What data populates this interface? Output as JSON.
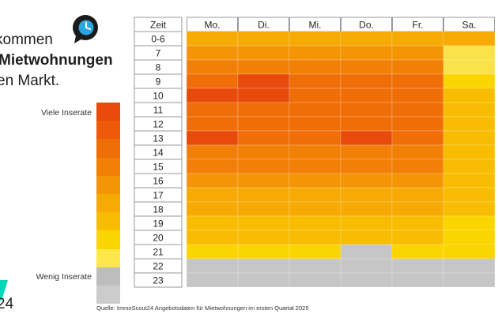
{
  "headline": {
    "line1": "kommen",
    "line2": "Mietwohnungen",
    "line3": "en Markt."
  },
  "icon": "clock-speech-bubble-icon",
  "legend": {
    "high_label": "Viele Inserate",
    "low_label": "Wenig Inserate",
    "colors": [
      "#e84a0c",
      "#ee5a0a",
      "#f06e08",
      "#f27f06",
      "#f49505",
      "#f6aa03",
      "#f8bd02",
      "#fbd500",
      "#fde74a",
      "#bdbdbd",
      "#cccccc"
    ]
  },
  "brand": {
    "logo_text": "24",
    "accent": "#00d9b8"
  },
  "source": "Quelle: ImmoScout24 Angebotsdaten für Mietwohnungen im ersten Quartal 2025",
  "chart_data": {
    "type": "heatmap",
    "corner_label": "Zeit",
    "x_categories": [
      "Mo.",
      "Di.",
      "Mi.",
      "Do.",
      "Fr.",
      "Sa."
    ],
    "y_categories": [
      "0-6",
      "7",
      "8",
      "9",
      "10",
      "11",
      "12",
      "13",
      "14",
      "15",
      "16",
      "17",
      "18",
      "19",
      "20",
      "21",
      "22",
      "23"
    ],
    "scale": "0 = Wenig Inserate (grey) … 10 = Viele Inserate (red-orange)",
    "values": [
      [
        5,
        5,
        5,
        5,
        5,
        5
      ],
      [
        6,
        6,
        6,
        6,
        6,
        2
      ],
      [
        7,
        7,
        7,
        7,
        7,
        2
      ],
      [
        8,
        9,
        8,
        8,
        8,
        3
      ],
      [
        9,
        9,
        8,
        8,
        8,
        4
      ],
      [
        8,
        8,
        8,
        8,
        8,
        4
      ],
      [
        8,
        8,
        8,
        8,
        8,
        4
      ],
      [
        9,
        8,
        8,
        9,
        8,
        4
      ],
      [
        7,
        7,
        7,
        7,
        7,
        4
      ],
      [
        7,
        7,
        7,
        7,
        7,
        4
      ],
      [
        6,
        6,
        6,
        6,
        6,
        4
      ],
      [
        5,
        5,
        5,
        5,
        5,
        4
      ],
      [
        5,
        5,
        5,
        5,
        5,
        4
      ],
      [
        4,
        4,
        4,
        4,
        4,
        3
      ],
      [
        4,
        4,
        4,
        4,
        4,
        3
      ],
      [
        3,
        3,
        3,
        0,
        3,
        3
      ],
      [
        0,
        0,
        0,
        0,
        0,
        0
      ],
      [
        0,
        0,
        0,
        0,
        0,
        0
      ]
    ]
  }
}
